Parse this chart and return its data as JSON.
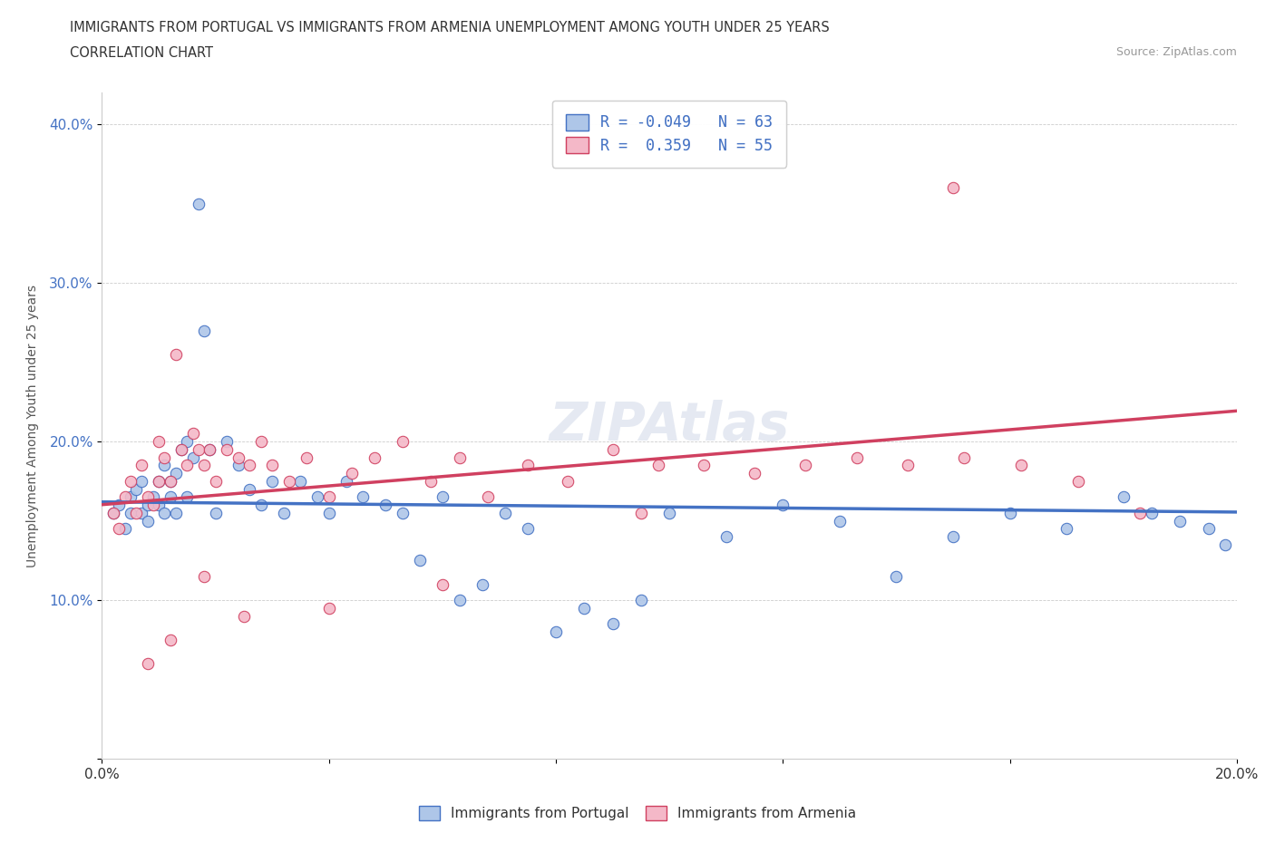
{
  "title_line1": "IMMIGRANTS FROM PORTUGAL VS IMMIGRANTS FROM ARMENIA UNEMPLOYMENT AMONG YOUTH UNDER 25 YEARS",
  "title_line2": "CORRELATION CHART",
  "source_text": "Source: ZipAtlas.com",
  "ylabel": "Unemployment Among Youth under 25 years",
  "xlim": [
    0.0,
    0.2
  ],
  "ylim": [
    0.0,
    0.42
  ],
  "x_ticks": [
    0.0,
    0.04,
    0.08,
    0.12,
    0.16,
    0.2
  ],
  "y_ticks": [
    0.0,
    0.1,
    0.2,
    0.3,
    0.4
  ],
  "color_portugal": "#aec6e8",
  "color_armenia": "#f4b8c8",
  "color_line_portugal": "#4472c4",
  "color_line_armenia": "#d04060",
  "R_portugal": -0.049,
  "N_portugal": 63,
  "R_armenia": 0.359,
  "N_armenia": 55,
  "watermark": "ZIPAtlas",
  "portugal_x": [
    0.002,
    0.003,
    0.004,
    0.005,
    0.005,
    0.006,
    0.007,
    0.007,
    0.008,
    0.008,
    0.009,
    0.01,
    0.01,
    0.011,
    0.011,
    0.012,
    0.012,
    0.013,
    0.013,
    0.014,
    0.015,
    0.015,
    0.016,
    0.017,
    0.018,
    0.019,
    0.02,
    0.022,
    0.024,
    0.026,
    0.028,
    0.03,
    0.032,
    0.035,
    0.038,
    0.04,
    0.043,
    0.046,
    0.05,
    0.053,
    0.056,
    0.06,
    0.063,
    0.067,
    0.071,
    0.075,
    0.08,
    0.085,
    0.09,
    0.095,
    0.1,
    0.11,
    0.12,
    0.13,
    0.14,
    0.15,
    0.16,
    0.17,
    0.18,
    0.185,
    0.19,
    0.195,
    0.198
  ],
  "portugal_y": [
    0.155,
    0.16,
    0.145,
    0.165,
    0.155,
    0.17,
    0.155,
    0.175,
    0.16,
    0.15,
    0.165,
    0.175,
    0.16,
    0.185,
    0.155,
    0.175,
    0.165,
    0.18,
    0.155,
    0.195,
    0.2,
    0.165,
    0.19,
    0.35,
    0.27,
    0.195,
    0.155,
    0.2,
    0.185,
    0.17,
    0.16,
    0.175,
    0.155,
    0.175,
    0.165,
    0.155,
    0.175,
    0.165,
    0.16,
    0.155,
    0.125,
    0.165,
    0.1,
    0.11,
    0.155,
    0.145,
    0.08,
    0.095,
    0.085,
    0.1,
    0.155,
    0.14,
    0.16,
    0.15,
    0.115,
    0.14,
    0.155,
    0.145,
    0.165,
    0.155,
    0.15,
    0.145,
    0.135
  ],
  "armenia_x": [
    0.002,
    0.003,
    0.004,
    0.005,
    0.006,
    0.007,
    0.008,
    0.009,
    0.01,
    0.01,
    0.011,
    0.012,
    0.013,
    0.014,
    0.015,
    0.016,
    0.017,
    0.018,
    0.019,
    0.02,
    0.022,
    0.024,
    0.026,
    0.028,
    0.03,
    0.033,
    0.036,
    0.04,
    0.044,
    0.048,
    0.053,
    0.058,
    0.063,
    0.068,
    0.075,
    0.082,
    0.09,
    0.098,
    0.106,
    0.115,
    0.124,
    0.133,
    0.142,
    0.152,
    0.162,
    0.172,
    0.183,
    0.15,
    0.095,
    0.06,
    0.04,
    0.025,
    0.018,
    0.012,
    0.008
  ],
  "armenia_y": [
    0.155,
    0.145,
    0.165,
    0.175,
    0.155,
    0.185,
    0.165,
    0.16,
    0.2,
    0.175,
    0.19,
    0.175,
    0.255,
    0.195,
    0.185,
    0.205,
    0.195,
    0.185,
    0.195,
    0.175,
    0.195,
    0.19,
    0.185,
    0.2,
    0.185,
    0.175,
    0.19,
    0.165,
    0.18,
    0.19,
    0.2,
    0.175,
    0.19,
    0.165,
    0.185,
    0.175,
    0.195,
    0.185,
    0.185,
    0.18,
    0.185,
    0.19,
    0.185,
    0.19,
    0.185,
    0.175,
    0.155,
    0.36,
    0.155,
    0.11,
    0.095,
    0.09,
    0.115,
    0.075,
    0.06
  ]
}
